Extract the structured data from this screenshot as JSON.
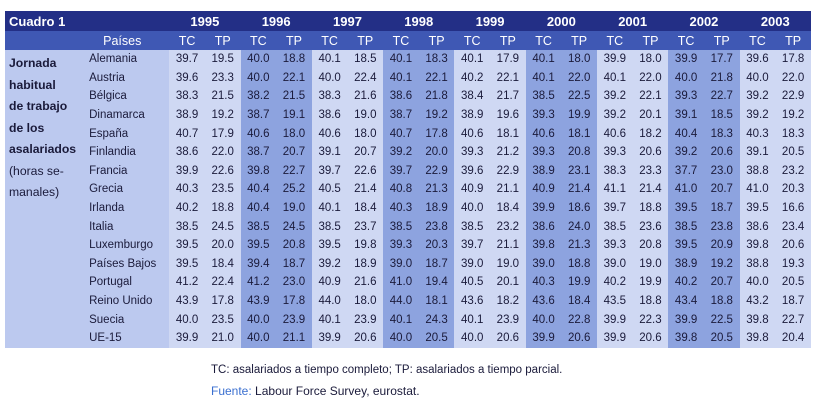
{
  "title": "Cuadro 1",
  "side_note_bold": [
    "Jornada",
    "habitual",
    "de trabajo",
    "de los",
    "asalariados"
  ],
  "side_note_normal": [
    "(horas se-",
    "manales)"
  ],
  "country_header": "Países",
  "years": [
    "1995",
    "1996",
    "1997",
    "1998",
    "1999",
    "2000",
    "2001",
    "2002",
    "2003"
  ],
  "sub_headers": [
    "TC",
    "TP"
  ],
  "rows": [
    {
      "country": "Alemania",
      "values": [
        "39.7",
        "19.5",
        "40.0",
        "18.8",
        "40.1",
        "18.5",
        "40.1",
        "18.3",
        "40.1",
        "17.9",
        "40.1",
        "18.0",
        "39.9",
        "18.0",
        "39.9",
        "17.7",
        "39.6",
        "17.8"
      ]
    },
    {
      "country": "Austria",
      "values": [
        "39.6",
        "23.3",
        "40.0",
        "22.1",
        "40.0",
        "22.4",
        "40.1",
        "22.1",
        "40.2",
        "22.1",
        "40.1",
        "22.0",
        "40.1",
        "22.0",
        "40.0",
        "21.8",
        "40.0",
        "22.0"
      ]
    },
    {
      "country": "Bélgica",
      "values": [
        "38.3",
        "21.5",
        "38.2",
        "21.5",
        "38.3",
        "21.6",
        "38.6",
        "21.8",
        "38.4",
        "21.7",
        "38.5",
        "22.5",
        "39.2",
        "22.1",
        "39.3",
        "22.7",
        "39.2",
        "22.9"
      ]
    },
    {
      "country": "Dinamarca",
      "values": [
        "38.9",
        "19.2",
        "38.7",
        "19.1",
        "38.6",
        "19.0",
        "38.7",
        "19.2",
        "38.9",
        "19.6",
        "39.3",
        "19.9",
        "39.2",
        "20.1",
        "39.1",
        "18.5",
        "39.2",
        "19.2"
      ]
    },
    {
      "country": "España",
      "values": [
        "40.7",
        "17.9",
        "40.6",
        "18.0",
        "40.6",
        "18.0",
        "40.7",
        "17.8",
        "40.6",
        "18.1",
        "40.6",
        "18.1",
        "40.6",
        "18.2",
        "40.4",
        "18.3",
        "40.3",
        "18.3"
      ]
    },
    {
      "country": "Finlandia",
      "values": [
        "38.6",
        "22.0",
        "38.7",
        "20.7",
        "39.1",
        "20.7",
        "39.2",
        "20.0",
        "39.3",
        "21.2",
        "39.3",
        "20.8",
        "39.3",
        "20.6",
        "39.2",
        "20.6",
        "39.1",
        "20.5"
      ]
    },
    {
      "country": "Francia",
      "values": [
        "39.9",
        "22.6",
        "39.8",
        "22.7",
        "39.7",
        "22.6",
        "39.7",
        "22.9",
        "39.6",
        "22.9",
        "38.9",
        "23.1",
        "38.3",
        "23.3",
        "37.7",
        "23.0",
        "38.8",
        "23.2"
      ]
    },
    {
      "country": "Grecia",
      "values": [
        "40.3",
        "23.5",
        "40.4",
        "25.2",
        "40.5",
        "21.4",
        "40.8",
        "21.3",
        "40.9",
        "21.1",
        "40.9",
        "21.4",
        "41.1",
        "21.4",
        "41.0",
        "20.7",
        "41.0",
        "20.3"
      ]
    },
    {
      "country": "Irlanda",
      "values": [
        "40.2",
        "18.8",
        "40.4",
        "19.0",
        "40.1",
        "18.4",
        "40.3",
        "18.9",
        "40.0",
        "18.4",
        "39.9",
        "18.6",
        "39.7",
        "18.8",
        "39.5",
        "18.7",
        "39.5",
        "16.6"
      ]
    },
    {
      "country": "Italia",
      "values": [
        "38.5",
        "24.5",
        "38.5",
        "24.5",
        "38.5",
        "23.7",
        "38.5",
        "23.8",
        "38.5",
        "23.2",
        "38.6",
        "24.0",
        "38.5",
        "23.6",
        "38.5",
        "23.8",
        "38.6",
        "23.4"
      ]
    },
    {
      "country": "Luxemburgo",
      "values": [
        "39.5",
        "20.0",
        "39.5",
        "20.8",
        "39.5",
        "19.8",
        "39.3",
        "20.3",
        "39.7",
        "21.1",
        "39.8",
        "21.3",
        "39.3",
        "20.8",
        "39.5",
        "20.9",
        "39.8",
        "20.6"
      ]
    },
    {
      "country": "Países Bajos",
      "values": [
        "39.5",
        "18.4",
        "39.4",
        "18.7",
        "39.2",
        "18.9",
        "39.0",
        "18.7",
        "39.0",
        "19.0",
        "39.0",
        "18.8",
        "39.0",
        "19.0",
        "38.9",
        "19.2",
        "38.8",
        "19.3"
      ]
    },
    {
      "country": "Portugal",
      "values": [
        "41.2",
        "22.4",
        "41.2",
        "23.0",
        "40.9",
        "21.6",
        "41.0",
        "19.4",
        "40.5",
        "20.1",
        "40.3",
        "19.9",
        "40.2",
        "19.9",
        "40.2",
        "20.7",
        "40.0",
        "20.5"
      ]
    },
    {
      "country": "Reino Unido",
      "values": [
        "43.9",
        "17.8",
        "43.9",
        "17.8",
        "44.0",
        "18.0",
        "44.0",
        "18.1",
        "43.6",
        "18.2",
        "43.6",
        "18.4",
        "43.5",
        "18.8",
        "43.4",
        "18.8",
        "43.2",
        "18.7"
      ]
    },
    {
      "country": "Suecia",
      "values": [
        "40.0",
        "23.5",
        "40.0",
        "23.9",
        "40.1",
        "23.9",
        "40.1",
        "24.3",
        "40.1",
        "23.9",
        "40.0",
        "22.8",
        "39.9",
        "22.3",
        "39.9",
        "22.5",
        "39.8",
        "22.7"
      ]
    },
    {
      "country": "UE-15",
      "values": [
        "39.9",
        "21.0",
        "40.0",
        "21.1",
        "39.9",
        "20.6",
        "40.0",
        "20.5",
        "40.0",
        "20.6",
        "39.9",
        "20.6",
        "39.9",
        "20.6",
        "39.8",
        "20.5",
        "39.8",
        "20.4"
      ]
    }
  ],
  "footnote": "TC: asalariados a tiempo completo; TP: asalariados a tiempo parcial.",
  "source_label": "Fuente:",
  "source_text": "Labour Force Survey, eurostat.",
  "colors": {
    "header_dark": "#232f86",
    "header_mid": "#3f58b4",
    "cell_light": "#cfd8f3",
    "cell_dark": "#8da3df",
    "side_bg": "#bcc9ef",
    "source_link": "#3a6fd0"
  }
}
